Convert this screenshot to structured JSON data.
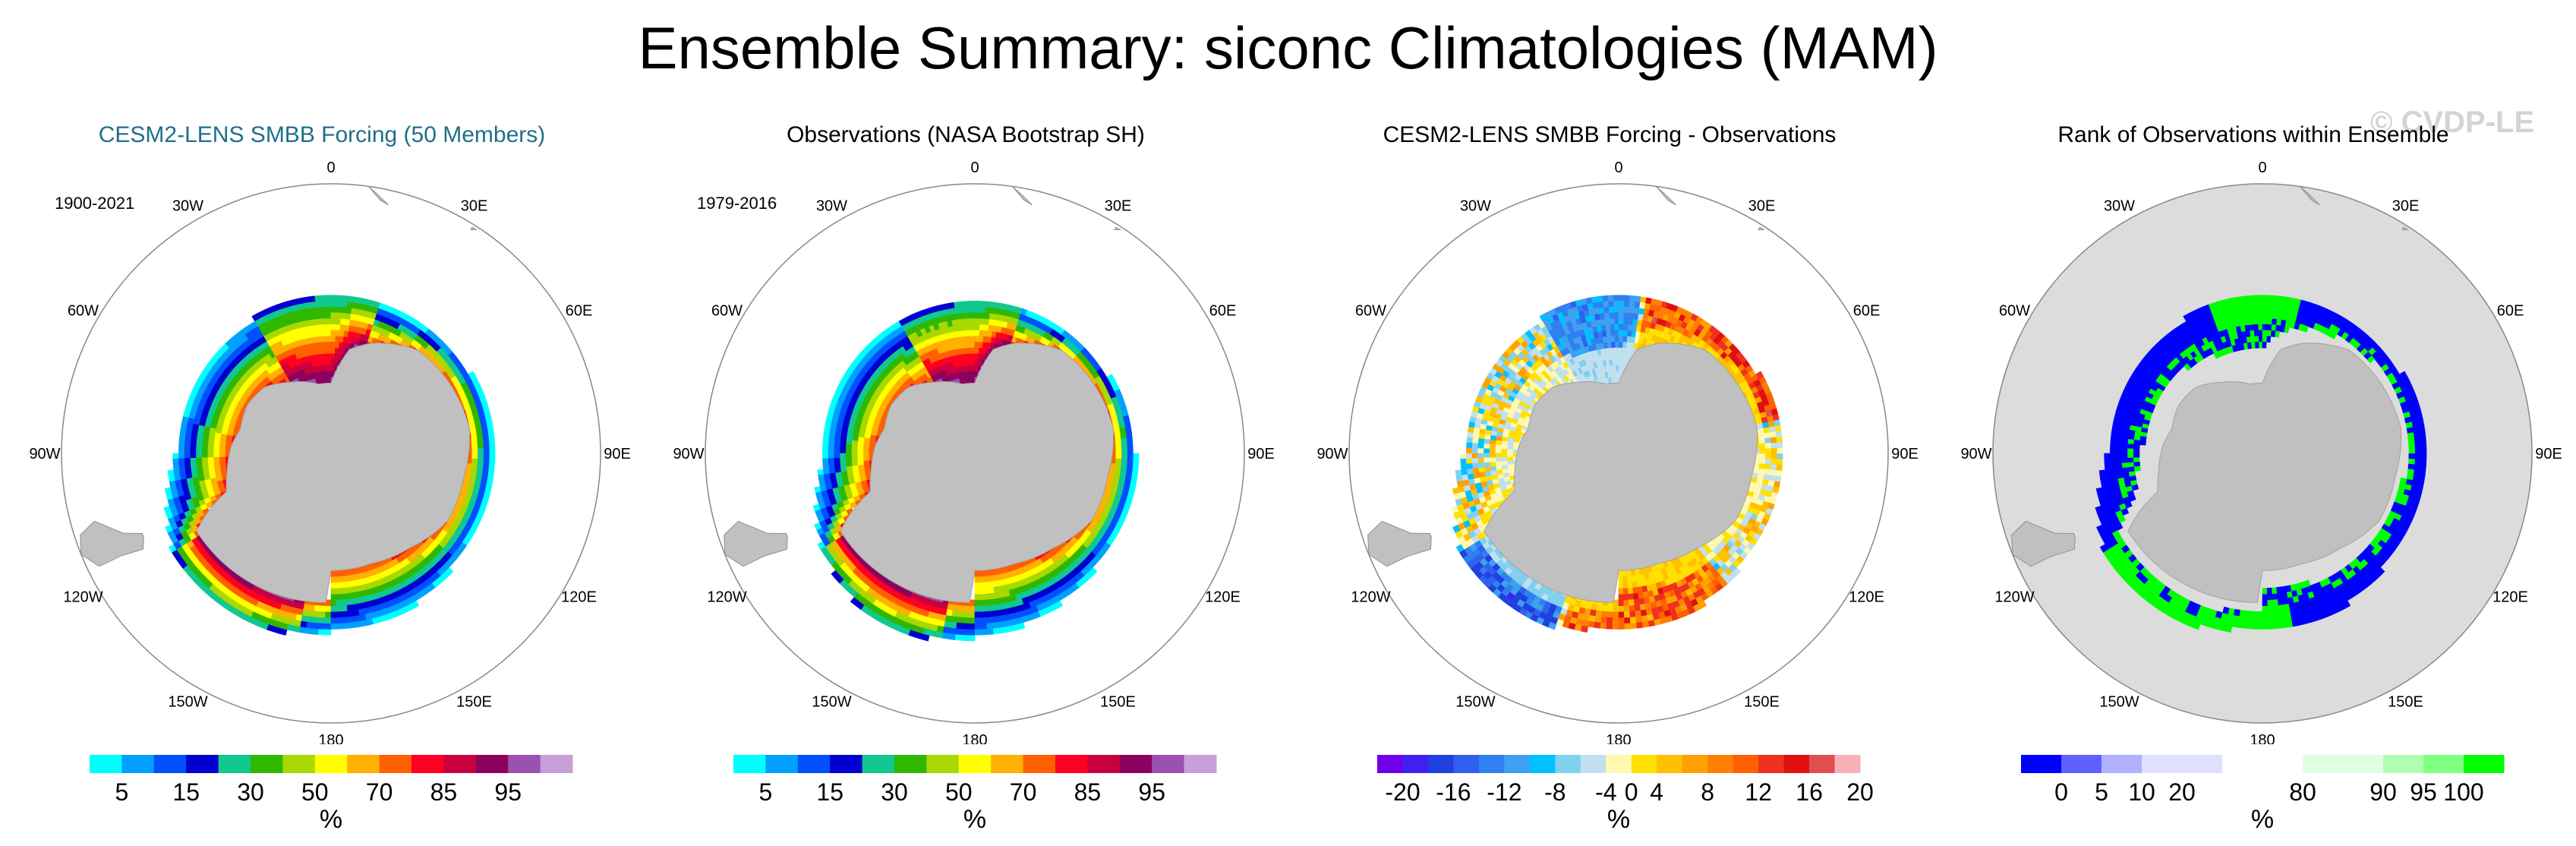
{
  "title": "Ensemble Summary: siconc Climatologies (MAM)",
  "watermark": "© CVDP-LE",
  "lon_labels": [
    {
      "lon": 0,
      "text": "0"
    },
    {
      "lon": 30,
      "text": "30E"
    },
    {
      "lon": 60,
      "text": "60E"
    },
    {
      "lon": 90,
      "text": "90E"
    },
    {
      "lon": 120,
      "text": "120E"
    },
    {
      "lon": 150,
      "text": "150E"
    },
    {
      "lon": 180,
      "text": "180"
    },
    {
      "lon": -150,
      "text": "150W"
    },
    {
      "lon": -120,
      "text": "120W"
    },
    {
      "lon": -90,
      "text": "90W"
    },
    {
      "lon": -60,
      "text": "60W"
    },
    {
      "lon": -30,
      "text": "30W"
    }
  ],
  "chart_data": [
    {
      "type": "heatmap",
      "title": "CESM2-LENS SMBB Forcing (50 Members)",
      "period": "1900-2021",
      "projection": "south-polar-stereographic",
      "field": "sea ice concentration climatology",
      "colorbar": {
        "unit": "%",
        "colors": [
          "#00ffff",
          "#00a0ff",
          "#0050ff",
          "#0000d0",
          "#10c890",
          "#30b800",
          "#a8d800",
          "#ffff00",
          "#ffb000",
          "#ff6000",
          "#ff0020",
          "#c80040",
          "#8c0060",
          "#9c50b0",
          "#c8a0d8"
        ],
        "tick_labels": [
          "5",
          "15",
          "30",
          "50",
          "70",
          "85",
          "95"
        ],
        "tick_boundaries": [
          1,
          3,
          5,
          7,
          9,
          11,
          13
        ]
      },
      "field_mode": "concentration",
      "rows": [
        {
          "lon": 0,
          "edge": -59
        },
        {
          "lon": 30,
          "edge": -60
        },
        {
          "lon": 60,
          "edge": -62
        },
        {
          "lon": 90,
          "edge": -62
        },
        {
          "lon": 120,
          "edge": -62
        },
        {
          "lon": 150,
          "edge": -63
        },
        {
          "lon": 180,
          "edge": -62
        },
        {
          "lon": -150,
          "edge": -63
        },
        {
          "lon": -120,
          "edge": -64
        },
        {
          "lon": -90,
          "edge": -63
        },
        {
          "lon": -60,
          "edge": -58
        },
        {
          "lon": -30,
          "edge": -57
        }
      ]
    },
    {
      "type": "heatmap",
      "title": "Observations (NASA Bootstrap SH)",
      "period": "1979-2016",
      "projection": "south-polar-stereographic",
      "field": "sea ice concentration climatology",
      "colorbar": {
        "unit": "%",
        "colors": [
          "#00ffff",
          "#00a0ff",
          "#0050ff",
          "#0000d0",
          "#10c890",
          "#30b800",
          "#a8d800",
          "#ffff00",
          "#ffb000",
          "#ff6000",
          "#ff0020",
          "#c80040",
          "#8c0060",
          "#9c50b0",
          "#c8a0d8"
        ],
        "tick_labels": [
          "5",
          "15",
          "30",
          "50",
          "70",
          "85",
          "95"
        ],
        "tick_boundaries": [
          1,
          3,
          5,
          7,
          9,
          11,
          13
        ]
      },
      "field_mode": "concentration",
      "rows": [
        {
          "lon": 0,
          "edge": -58
        },
        {
          "lon": 30,
          "edge": -60
        },
        {
          "lon": 60,
          "edge": -62
        },
        {
          "lon": 90,
          "edge": -62
        },
        {
          "lon": 120,
          "edge": -63
        },
        {
          "lon": 150,
          "edge": -64
        },
        {
          "lon": 180,
          "edge": -63
        },
        {
          "lon": -150,
          "edge": -64
        },
        {
          "lon": -120,
          "edge": -64
        },
        {
          "lon": -90,
          "edge": -64
        },
        {
          "lon": -60,
          "edge": -59
        },
        {
          "lon": -30,
          "edge": -56
        }
      ]
    },
    {
      "type": "heatmap",
      "title": "CESM2-LENS SMBB Forcing - Observations",
      "period": "",
      "projection": "south-polar-stereographic",
      "field": "model minus observations",
      "colorbar": {
        "unit": "%",
        "colors": [
          "#7000e8",
          "#4020f0",
          "#2040e0",
          "#3060f0",
          "#3080f0",
          "#40a0f0",
          "#00c0ff",
          "#80d0f0",
          "#c0e0f0",
          "#fff8b0",
          "#ffe000",
          "#ffc000",
          "#ffa000",
          "#ff8000",
          "#ff6000",
          "#f03020",
          "#e01010",
          "#e05050",
          "#f8b0b8"
        ],
        "tick_labels": [
          "-20",
          "-16",
          "-12",
          "-8",
          "-4",
          "0",
          "4",
          "8",
          "12",
          "16",
          "20"
        ],
        "tick_boundaries": [
          1,
          3,
          5,
          7,
          9,
          10,
          11,
          13,
          15,
          17,
          19
        ]
      },
      "field_mode": "difference",
      "rows": [
        {
          "lon": 0,
          "edge": -60
        },
        {
          "lon": 30,
          "edge": -60
        },
        {
          "lon": 60,
          "edge": -62
        },
        {
          "lon": 90,
          "edge": -62
        },
        {
          "lon": 120,
          "edge": -62
        },
        {
          "lon": 150,
          "edge": -63
        },
        {
          "lon": 180,
          "edge": -62
        },
        {
          "lon": -150,
          "edge": -63
        },
        {
          "lon": -120,
          "edge": -64
        },
        {
          "lon": -90,
          "edge": -63
        },
        {
          "lon": -60,
          "edge": -58
        },
        {
          "lon": -30,
          "edge": -57
        }
      ]
    },
    {
      "type": "heatmap",
      "title": "Rank of Observations within Ensemble",
      "period": "",
      "projection": "south-polar-stereographic",
      "field": "rank of observations",
      "colorbar": {
        "unit": "%",
        "colors": [
          "#0000ff",
          "#6060ff",
          "#b0b0ff",
          "#e0e0ff",
          "#e0e0ff",
          "#ffffff",
          "#ffffff",
          "#e0ffe0",
          "#e0ffe0",
          "#b0ffb0",
          "#80ff80",
          "#00ff00"
        ],
        "tick_labels": [
          "0",
          "5",
          "10",
          "20",
          "80",
          "90",
          "95",
          "100"
        ],
        "tick_boundaries": [
          1,
          2,
          3,
          4,
          7,
          9,
          10,
          11
        ]
      },
      "field_mode": "rank",
      "rows": [
        {
          "lon": 0,
          "edge": -60
        },
        {
          "lon": 30,
          "edge": -60
        },
        {
          "lon": 60,
          "edge": -62
        },
        {
          "lon": 90,
          "edge": -62
        },
        {
          "lon": 120,
          "edge": -62
        },
        {
          "lon": 150,
          "edge": -63
        },
        {
          "lon": 180,
          "edge": -62
        },
        {
          "lon": -150,
          "edge": -63
        },
        {
          "lon": -120,
          "edge": -64
        },
        {
          "lon": -90,
          "edge": -63
        },
        {
          "lon": -60,
          "edge": -58
        },
        {
          "lon": -30,
          "edge": -57
        }
      ]
    }
  ]
}
